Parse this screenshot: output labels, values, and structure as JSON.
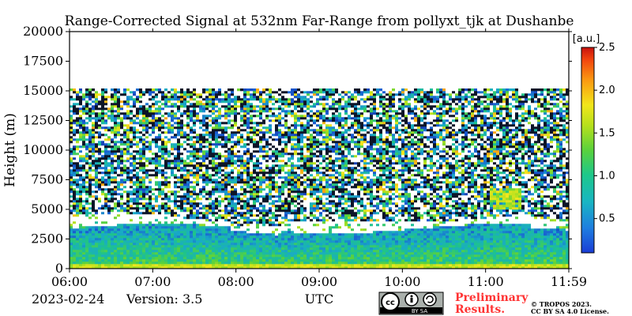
{
  "chart_data": {
    "type": "heatmap",
    "title": "Range-Corrected Signal at 532nm Far-Range from pollyxt_tjk at Dushanbe",
    "ylabel": "Height (m)",
    "xlabel": "UTC",
    "ylim": [
      0,
      20000
    ],
    "x_ticks": [
      "06:00",
      "07:00",
      "08:00",
      "09:00",
      "10:00",
      "11:00",
      "11:59"
    ],
    "x_range_hours": [
      6.0,
      11.9833
    ],
    "y_ticks": [
      "0",
      "2500",
      "5000",
      "7500",
      "10000",
      "12500",
      "15000",
      "17500",
      "20000"
    ],
    "y_tick_values": [
      0,
      2500,
      5000,
      7500,
      10000,
      12500,
      15000,
      17500,
      20000
    ],
    "data_top_m": 15300,
    "colorbar": {
      "unit": "[a.u.]",
      "range": [
        0.1,
        2.5
      ],
      "ticks": [
        "0.5",
        "1.0",
        "1.5",
        "2.0",
        "2.5"
      ],
      "tick_values": [
        0.5,
        1.0,
        1.5,
        2.0,
        2.5
      ]
    },
    "layers": [
      {
        "name": "near-surface layer",
        "top_m": 500,
        "signal": 1.3
      },
      {
        "name": "boundary layer",
        "top_m": 3000,
        "signal": 0.7
      },
      {
        "name": "saturated layer",
        "base_m": 3500,
        "top_m": 4300,
        "signal": 2.5,
        "note": "shown white (above colour scale)"
      },
      {
        "name": "elevated aerosol plume",
        "time": "11:10",
        "base_m": 5000,
        "top_m": 7000,
        "signal": 1.2
      }
    ]
  },
  "footer": {
    "date": "2023-02-24",
    "version": "Version: 3.5",
    "preliminary_line1": "Preliminary",
    "preliminary_line2": "Results.",
    "copyright_line1": "© TROPOS 2023.",
    "copyright_line2": "CC BY SA 4.0 License.",
    "license_badge_text": "BY   SA"
  }
}
